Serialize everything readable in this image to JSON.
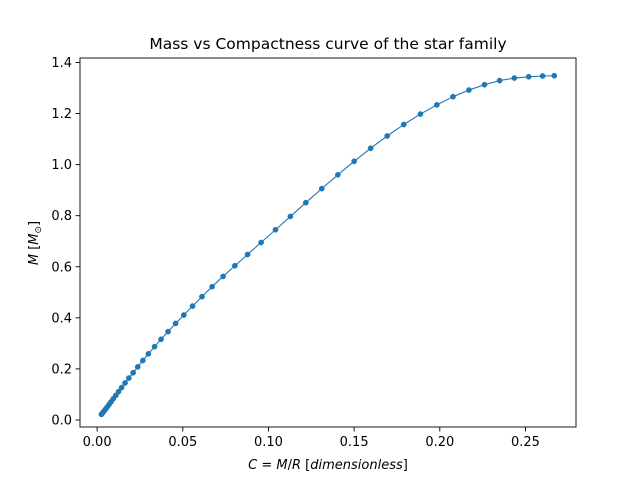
{
  "chart_data": {
    "type": "line",
    "title": "Mass vs Compactness curve of the star family",
    "xlabel": {
      "prefix": "C",
      "eq": " = ",
      "m": "M",
      "slash": "/",
      "r": "R",
      "open": " [",
      "unit": "dimensionless",
      "close": "]"
    },
    "ylabel": {
      "var": "M",
      "open": " [",
      "unit": "M",
      "sub": "⊙",
      "close": "]"
    },
    "xlim": [
      -0.01,
      0.2795
    ],
    "ylim": [
      -0.0275,
      1.4175
    ],
    "xticks": [
      0.0,
      0.05,
      0.1,
      0.15,
      0.2,
      0.25
    ],
    "xtick_labels": [
      "0.00",
      "0.05",
      "0.10",
      "0.15",
      "0.20",
      "0.25"
    ],
    "yticks": [
      0.0,
      0.2,
      0.4,
      0.6,
      0.8,
      1.0,
      1.2,
      1.4
    ],
    "ytick_labels": [
      "0.0",
      "0.2",
      "0.4",
      "0.6",
      "0.8",
      "1.0",
      "1.2",
      "1.4"
    ],
    "grid": false,
    "series": [
      {
        "color": "#1f77b4",
        "marker": "circle",
        "x": [
          0.0025,
          0.003,
          0.0036,
          0.0043,
          0.0051,
          0.006,
          0.007,
          0.0081,
          0.0094,
          0.0109,
          0.0125,
          0.0143,
          0.0163,
          0.0185,
          0.021,
          0.0237,
          0.0267,
          0.0299,
          0.0335,
          0.0373,
          0.0414,
          0.0458,
          0.0506,
          0.0557,
          0.0612,
          0.0671,
          0.0735,
          0.0804,
          0.0878,
          0.0957,
          0.1041,
          0.1128,
          0.1218,
          0.1311,
          0.1405,
          0.15,
          0.1596,
          0.1693,
          0.179,
          0.1887,
          0.1983,
          0.2077,
          0.217,
          0.2261,
          0.2349,
          0.2435,
          0.2519,
          0.26,
          0.2668
        ],
        "y": [
          0.022,
          0.026,
          0.031,
          0.037,
          0.044,
          0.052,
          0.061,
          0.071,
          0.083,
          0.096,
          0.111,
          0.127,
          0.145,
          0.164,
          0.185,
          0.208,
          0.233,
          0.259,
          0.287,
          0.316,
          0.346,
          0.378,
          0.411,
          0.446,
          0.483,
          0.522,
          0.562,
          0.604,
          0.648,
          0.695,
          0.745,
          0.797,
          0.851,
          0.906,
          0.96,
          1.013,
          1.064,
          1.112,
          1.157,
          1.198,
          1.234,
          1.266,
          1.292,
          1.313,
          1.329,
          1.339,
          1.344,
          1.347,
          1.348
        ]
      }
    ]
  }
}
